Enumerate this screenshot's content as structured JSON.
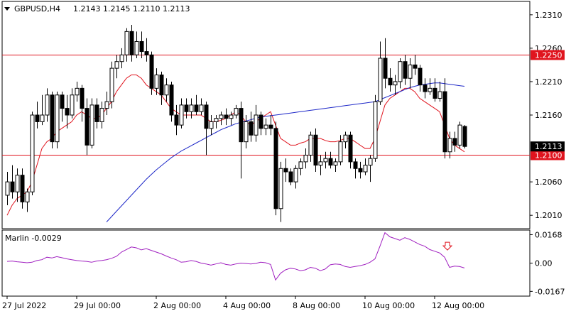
{
  "header": {
    "symbol": "GBPUSD,H4",
    "ohlc": "1.2143 1.2145 1.2110 1.2113"
  },
  "colors": {
    "background": "#ffffff",
    "frame": "#000000",
    "bull_candle": "#ffffff",
    "bear_candle": "#000000",
    "ma_fast": "#e0141e",
    "ma_slow": "#1e28c8",
    "hline": "#e0141e",
    "oscillator": "#a020c0",
    "signal_arrow": "#e0141e",
    "price_tag_red": "#e0141e",
    "price_tag_black": "#000000"
  },
  "price_axis": {
    "ticks": [
      "1.2310",
      "1.2260",
      "1.2210",
      "1.2160",
      "1.2060",
      "1.2010"
    ],
    "tick_values": [
      1.231,
      1.226,
      1.221,
      1.216,
      1.206,
      1.201
    ],
    "ymin": 1.199,
    "ymax": 1.233
  },
  "levels": [
    {
      "value": 1.225,
      "label": "1.2250",
      "style": "red"
    },
    {
      "value": 1.21,
      "label": "1.2100",
      "style": "red"
    }
  ],
  "current_price": {
    "value": 1.2113,
    "label": "1.2113"
  },
  "time_axis": {
    "labels": [
      {
        "text": "27 Jul 2022",
        "index": 0
      },
      {
        "text": "29 Jul 00:00",
        "index": 14
      },
      {
        "text": "2 Aug 00:00",
        "index": 30
      },
      {
        "text": "4 Aug 00:00",
        "index": 44
      },
      {
        "text": "8 Aug 00:00",
        "index": 58
      },
      {
        "text": "10 Aug 00:00",
        "index": 72
      },
      {
        "text": "12 Aug 00:00",
        "index": 86
      }
    ]
  },
  "indicator": {
    "label": "Marlin -0.0029",
    "ticks": [
      "0.0168",
      "0.00",
      "-0.0167"
    ],
    "tick_values": [
      0.0168,
      0.0,
      -0.0167
    ],
    "ymin": -0.0195,
    "ymax": 0.0195,
    "signal_index": 88
  },
  "chart_data": {
    "type": "candlestick",
    "title": "GBPUSD,H4",
    "candles": [
      [
        1.204,
        1.2075,
        1.2025,
        1.206
      ],
      [
        1.206,
        1.2085,
        1.2035,
        1.2045
      ],
      [
        1.2045,
        1.208,
        1.203,
        1.207
      ],
      [
        1.207,
        1.208,
        1.202,
        1.203
      ],
      [
        1.203,
        1.205,
        1.2015,
        1.2045
      ],
      [
        1.2045,
        1.2165,
        1.204,
        1.216
      ],
      [
        1.216,
        1.218,
        1.214,
        1.215
      ],
      [
        1.215,
        1.219,
        1.2145,
        1.216
      ],
      [
        1.216,
        1.22,
        1.215,
        1.219
      ],
      [
        1.219,
        1.2195,
        1.211,
        1.212
      ],
      [
        1.212,
        1.2195,
        1.211,
        1.219
      ],
      [
        1.219,
        1.2195,
        1.215,
        1.217
      ],
      [
        1.217,
        1.219,
        1.214,
        1.216
      ],
      [
        1.216,
        1.22,
        1.2155,
        1.219
      ],
      [
        1.219,
        1.221,
        1.218,
        1.22
      ],
      [
        1.22,
        1.2205,
        1.215,
        1.217
      ],
      [
        1.217,
        1.2185,
        1.21,
        1.2115
      ],
      [
        1.2115,
        1.2185,
        1.211,
        1.2175
      ],
      [
        1.2175,
        1.2185,
        1.214,
        1.215
      ],
      [
        1.215,
        1.218,
        1.214,
        1.217
      ],
      [
        1.217,
        1.2195,
        1.216,
        1.218
      ],
      [
        1.218,
        1.224,
        1.217,
        1.223
      ],
      [
        1.223,
        1.225,
        1.2215,
        1.224
      ],
      [
        1.224,
        1.226,
        1.223,
        1.225
      ],
      [
        1.225,
        1.229,
        1.224,
        1.2285
      ],
      [
        1.2285,
        1.2295,
        1.224,
        1.225
      ],
      [
        1.225,
        1.2285,
        1.2245,
        1.227
      ],
      [
        1.227,
        1.2285,
        1.2245,
        1.2255
      ],
      [
        1.2255,
        1.2275,
        1.224,
        1.225
      ],
      [
        1.225,
        1.2255,
        1.219,
        1.22
      ],
      [
        1.22,
        1.223,
        1.219,
        1.222
      ],
      [
        1.222,
        1.2225,
        1.2175,
        1.219
      ],
      [
        1.219,
        1.2215,
        1.218,
        1.2205
      ],
      [
        1.2205,
        1.221,
        1.215,
        1.216
      ],
      [
        1.216,
        1.2175,
        1.213,
        1.2145
      ],
      [
        1.2145,
        1.2185,
        1.214,
        1.2175
      ],
      [
        1.2175,
        1.2185,
        1.2155,
        1.2165
      ],
      [
        1.2165,
        1.2185,
        1.2155,
        1.2175
      ],
      [
        1.2175,
        1.219,
        1.216,
        1.2165
      ],
      [
        1.2165,
        1.2185,
        1.216,
        1.2175
      ],
      [
        1.2175,
        1.218,
        1.21,
        1.214
      ],
      [
        1.214,
        1.216,
        1.213,
        1.215
      ],
      [
        1.215,
        1.216,
        1.214,
        1.2155
      ],
      [
        1.2155,
        1.2165,
        1.2145,
        1.216
      ],
      [
        1.216,
        1.217,
        1.2145,
        1.2155
      ],
      [
        1.2155,
        1.2165,
        1.2145,
        1.216
      ],
      [
        1.216,
        1.2175,
        1.2155,
        1.217
      ],
      [
        1.217,
        1.218,
        1.2065,
        1.212
      ],
      [
        1.212,
        1.216,
        1.211,
        1.215
      ],
      [
        1.215,
        1.2165,
        1.212,
        1.213
      ],
      [
        1.213,
        1.2175,
        1.212,
        1.216
      ],
      [
        1.216,
        1.2165,
        1.213,
        1.214
      ],
      [
        1.214,
        1.2155,
        1.213,
        1.2145
      ],
      [
        1.2145,
        1.216,
        1.213,
        1.214
      ],
      [
        1.214,
        1.215,
        1.201,
        1.202
      ],
      [
        1.202,
        1.209,
        1.2,
        1.208
      ],
      [
        1.208,
        1.2095,
        1.206,
        1.2075
      ],
      [
        1.2075,
        1.208,
        1.2055,
        1.206
      ],
      [
        1.206,
        1.2085,
        1.205,
        1.208
      ],
      [
        1.208,
        1.2095,
        1.207,
        1.209
      ],
      [
        1.209,
        1.211,
        1.208,
        1.21
      ],
      [
        1.21,
        1.2135,
        1.209,
        1.213
      ],
      [
        1.213,
        1.214,
        1.2075,
        1.2085
      ],
      [
        1.2085,
        1.21,
        1.207,
        1.209
      ],
      [
        1.209,
        1.2105,
        1.208,
        1.2095
      ],
      [
        1.2095,
        1.2105,
        1.208,
        1.2085
      ],
      [
        1.2085,
        1.2095,
        1.2075,
        1.209
      ],
      [
        1.209,
        1.213,
        1.2085,
        1.212
      ],
      [
        1.212,
        1.2135,
        1.211,
        1.213
      ],
      [
        1.213,
        1.2135,
        1.208,
        1.209
      ],
      [
        1.209,
        1.2095,
        1.2065,
        1.208
      ],
      [
        1.208,
        1.209,
        1.2065,
        1.2075
      ],
      [
        1.2075,
        1.2095,
        1.207,
        1.2085
      ],
      [
        1.2085,
        1.21,
        1.206,
        1.2095
      ],
      [
        1.2095,
        1.219,
        1.209,
        1.218
      ],
      [
        1.218,
        1.227,
        1.2175,
        1.2245
      ],
      [
        1.2245,
        1.2275,
        1.22,
        1.2215
      ],
      [
        1.2215,
        1.223,
        1.2195,
        1.2205
      ],
      [
        1.2205,
        1.222,
        1.219,
        1.221
      ],
      [
        1.221,
        1.2245,
        1.22,
        1.224
      ],
      [
        1.224,
        1.225,
        1.2205,
        1.2215
      ],
      [
        1.2215,
        1.2245,
        1.22,
        1.2235
      ],
      [
        1.2235,
        1.225,
        1.222,
        1.223
      ],
      [
        1.223,
        1.2235,
        1.2195,
        1.2205
      ],
      [
        1.2205,
        1.2215,
        1.2185,
        1.2195
      ],
      [
        1.2195,
        1.2215,
        1.219,
        1.22
      ],
      [
        1.22,
        1.2215,
        1.218,
        1.2185
      ],
      [
        1.2185,
        1.221,
        1.218,
        1.2195
      ],
      [
        1.2195,
        1.2215,
        1.2095,
        1.2105
      ],
      [
        1.2105,
        1.2135,
        1.2095,
        1.2125
      ],
      [
        1.2125,
        1.2135,
        1.2105,
        1.2115
      ],
      [
        1.2115,
        1.215,
        1.211,
        1.2145
      ],
      [
        1.2143,
        1.2145,
        1.211,
        1.2113
      ]
    ],
    "ma_fast": [
      1.201,
      1.2025,
      1.2035,
      1.204,
      1.2045,
      1.206,
      1.2085,
      1.211,
      1.212,
      1.2125,
      1.2135,
      1.214,
      1.2145,
      1.215,
      1.216,
      1.2165,
      1.216,
      1.2155,
      1.2155,
      1.216,
      1.217,
      1.218,
      1.2195,
      1.2205,
      1.2215,
      1.222,
      1.222,
      1.2215,
      1.2205,
      1.22,
      1.2195,
      1.219,
      1.218,
      1.217,
      1.2165,
      1.216,
      1.216,
      1.216,
      1.216,
      1.216,
      1.2155,
      1.215,
      1.215,
      1.2152,
      1.2155,
      1.216,
      1.2165,
      1.216,
      1.215,
      1.2145,
      1.215,
      1.2155,
      1.216,
      1.2165,
      1.2145,
      1.2125,
      1.212,
      1.2115,
      1.2115,
      1.2118,
      1.212,
      1.2125,
      1.2125,
      1.2125,
      1.2122,
      1.212,
      1.212,
      1.2122,
      1.2125,
      1.2125,
      1.212,
      1.2115,
      1.211,
      1.211,
      1.2125,
      1.215,
      1.2175,
      1.2185,
      1.219,
      1.2195,
      1.22,
      1.22,
      1.2195,
      1.2185,
      1.218,
      1.2175,
      1.217,
      1.2165,
      1.2145,
      1.2125,
      1.2115,
      1.211,
      1.2105
    ],
    "ma_slow": [
      null,
      null,
      null,
      null,
      null,
      null,
      null,
      null,
      null,
      null,
      null,
      null,
      null,
      null,
      null,
      null,
      null,
      null,
      null,
      null,
      1.2,
      1.2008,
      1.2016,
      1.2024,
      1.2032,
      1.204,
      1.2048,
      1.2056,
      1.2064,
      1.2071,
      1.2078,
      1.2084,
      1.209,
      1.2096,
      1.2101,
      1.2106,
      1.211,
      1.2114,
      1.2118,
      1.2122,
      1.2126,
      1.213,
      1.2134,
      1.2138,
      1.2141,
      1.2144,
      1.2147,
      1.2149,
      1.2151,
      1.2153,
      1.2155,
      1.2157,
      1.2158,
      1.2159,
      1.216,
      1.2161,
      1.2162,
      1.2163,
      1.2164,
      1.2165,
      1.2166,
      1.2167,
      1.2168,
      1.2169,
      1.217,
      1.2171,
      1.2172,
      1.2173,
      1.2174,
      1.2175,
      1.2176,
      1.2177,
      1.2178,
      1.2179,
      1.218,
      1.2183,
      1.2186,
      1.2189,
      1.2192,
      1.2195,
      1.2198,
      1.2201,
      1.2203,
      1.2205,
      1.2206,
      1.2207,
      1.2208,
      1.2208,
      1.2207,
      1.2206,
      1.2205,
      1.2204,
      1.2203
    ],
    "oscillator": [
      0.001,
      0.0012,
      0.0008,
      0.0005,
      0.0002,
      0.0005,
      0.0015,
      0.002,
      0.0035,
      0.003,
      0.0038,
      0.0032,
      0.0025,
      0.002,
      0.0015,
      0.0012,
      0.001,
      0.0005,
      0.0012,
      0.0015,
      0.002,
      0.0028,
      0.004,
      0.0065,
      0.008,
      0.0095,
      0.009,
      0.0078,
      0.0085,
      0.0075,
      0.0065,
      0.0055,
      0.0042,
      0.003,
      0.002,
      0.0005,
      0.0008,
      0.0015,
      0.001,
      0.0,
      -0.0005,
      -0.0012,
      -0.0005,
      0.0002,
      -0.0008,
      -0.0012,
      -0.0005,
      0.0,
      -0.0002,
      -0.0005,
      -0.0002,
      0.0005,
      0.0002,
      -0.0008,
      -0.01,
      -0.006,
      -0.004,
      -0.003,
      -0.0035,
      -0.0045,
      -0.004,
      -0.0025,
      -0.003,
      -0.0045,
      -0.0035,
      -0.001,
      -0.0005,
      -0.0008,
      -0.002,
      -0.0025,
      -0.002,
      -0.0015,
      -0.0008,
      0.0005,
      0.0025,
      0.01,
      0.018,
      0.0155,
      0.0145,
      0.0135,
      0.015,
      0.014,
      0.0125,
      0.011,
      0.01,
      0.008,
      0.007,
      0.006,
      0.0035,
      -0.0025,
      -0.0018,
      -0.002,
      -0.0029
    ]
  }
}
